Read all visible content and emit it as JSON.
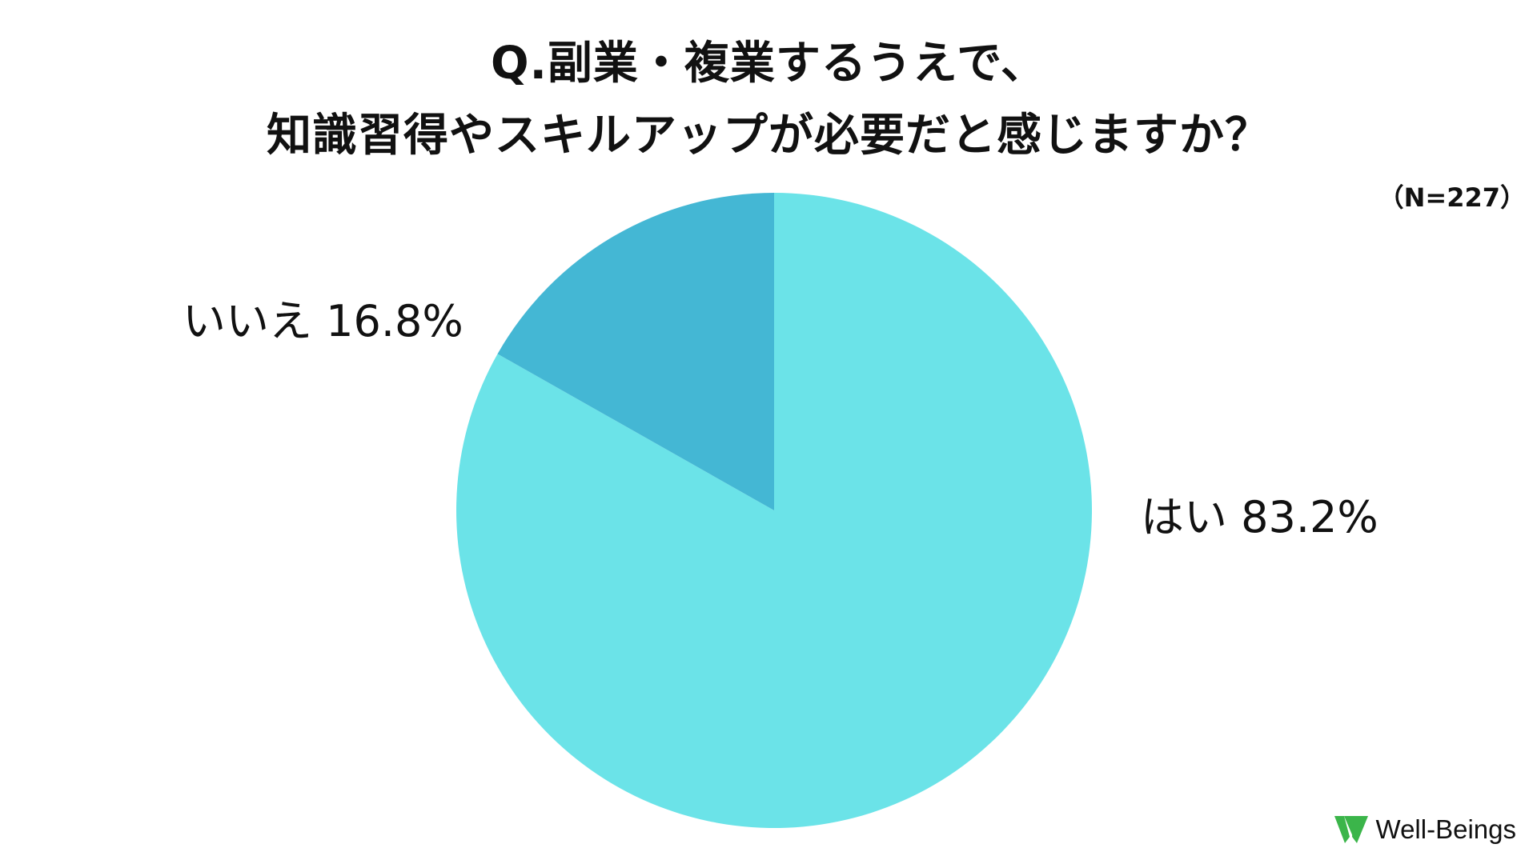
{
  "title": {
    "line1": "Q.副業・複業するうえで、",
    "line2": "知識習得やスキルアップが必要だと感じますか？"
  },
  "sample_size": "（N=227）",
  "brand": {
    "logo_icon": "well-beings-logo-icon",
    "name": "Well-Beings"
  },
  "colors": {
    "yes": "#6be3e8",
    "no": "#44b7d4",
    "logo_green": "#3bb54a"
  },
  "labels": {
    "yes": {
      "name": "はい",
      "value": "83.2%"
    },
    "no": {
      "name": "いいえ",
      "value": "16.8%"
    }
  },
  "chart_data": {
    "type": "pie",
    "title": "Q.副業・複業するうえで、知識習得やスキルアップが必要だと感じますか？",
    "categories": [
      "はい",
      "いいえ"
    ],
    "values": [
      83.2,
      16.8
    ],
    "unit": "%",
    "start": "12 o'clock",
    "direction": "clockwise",
    "legend": "none (labels beside slices)"
  }
}
